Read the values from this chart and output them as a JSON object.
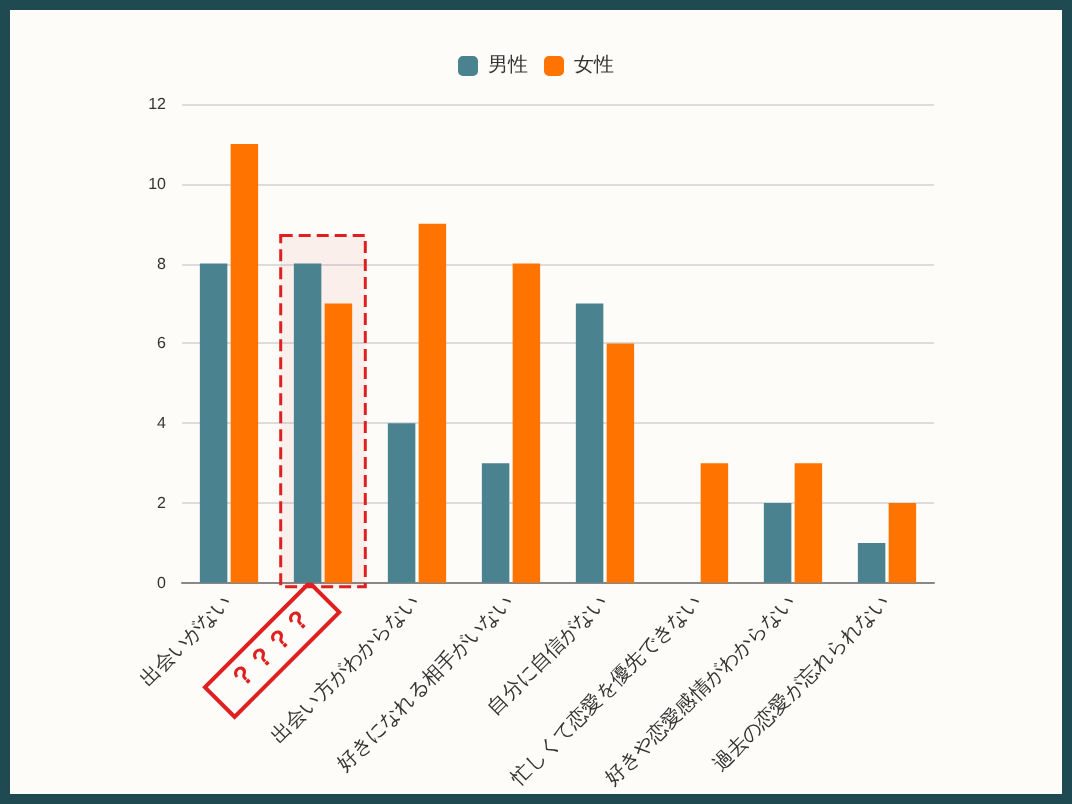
{
  "chart_data": {
    "type": "bar",
    "categories": [
      "出会いがない",
      "？？？？",
      "出会い方がわからない",
      "好きになれる相手がいない",
      "自分に自信がない",
      "忙しくて恋愛を優先できない",
      "好きや恋愛感情がわからない",
      "過去の恋愛が忘れられない"
    ],
    "series": [
      {
        "name": "男性",
        "color": "#4a8290",
        "values": [
          8,
          8,
          4,
          3,
          7,
          0,
          2,
          1
        ]
      },
      {
        "name": "女性",
        "color": "#ff7300",
        "values": [
          11,
          7,
          9,
          8,
          6,
          3,
          3,
          2
        ]
      }
    ],
    "ylim": [
      0,
      12
    ],
    "yticks": [
      0,
      2,
      4,
      6,
      8,
      10,
      12
    ],
    "grid": "y",
    "legend": "top",
    "bands": [
      {
        "axis": "x",
        "from": "？？？？",
        "to": "？？？？",
        "color": "#e02020"
      }
    ]
  }
}
